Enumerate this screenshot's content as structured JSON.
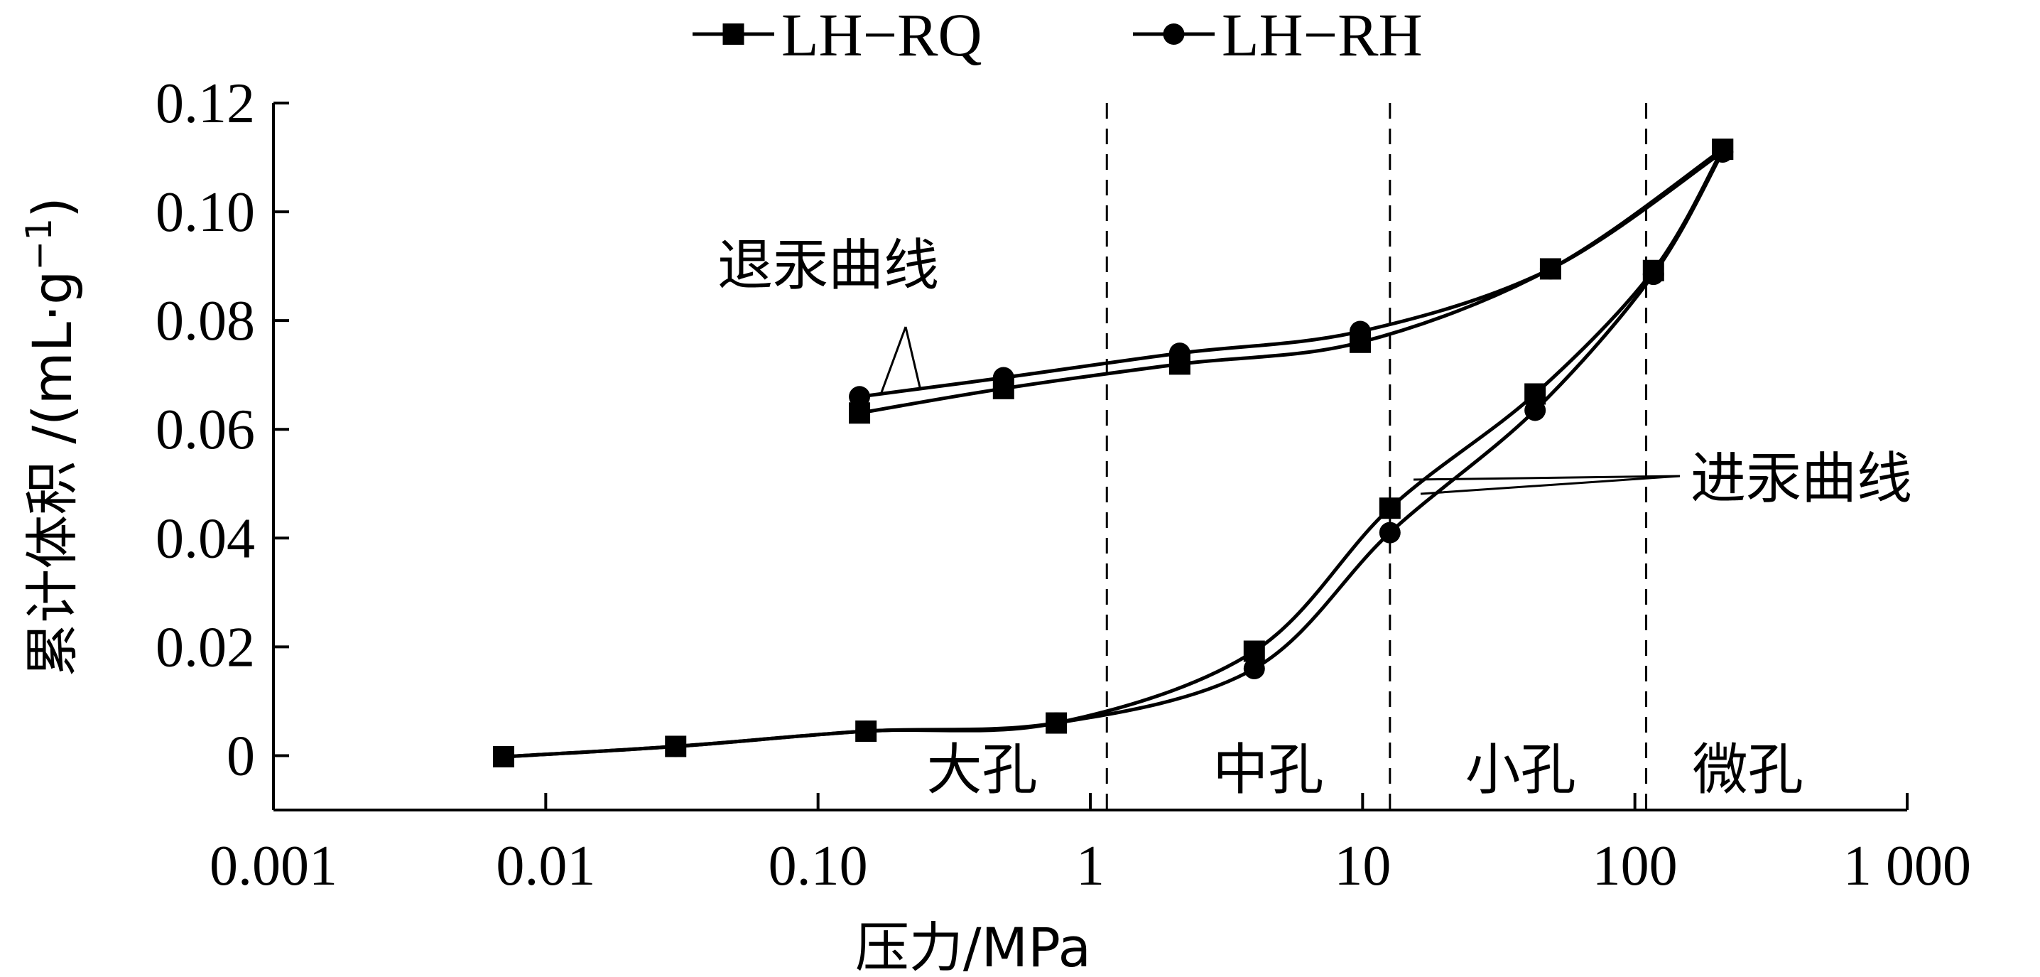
{
  "chart_data": {
    "type": "line",
    "x_scale": "log",
    "xlabel": "压力/MPa",
    "ylabel_main": "累计体积 /(mL·g",
    "ylabel_sup": "−1",
    "ylabel_close": ")",
    "xlim": [
      0.001,
      1000
    ],
    "ylim": [
      -0.01,
      0.12
    ],
    "x_ticks": [
      {
        "value": 0.001,
        "label": "0.001"
      },
      {
        "value": 0.01,
        "label": "0.01"
      },
      {
        "value": 0.1,
        "label": "0.10"
      },
      {
        "value": 1,
        "label": "1"
      },
      {
        "value": 10,
        "label": "10"
      },
      {
        "value": 100,
        "label": "100"
      },
      {
        "value": 1000,
        "label": "1 000"
      }
    ],
    "y_ticks": [
      {
        "value": 0,
        "label": "0"
      },
      {
        "value": 0.02,
        "label": "0.02"
      },
      {
        "value": 0.04,
        "label": "0.04"
      },
      {
        "value": 0.06,
        "label": "0.06"
      },
      {
        "value": 0.08,
        "label": "0.08"
      },
      {
        "value": 0.1,
        "label": "0.10"
      },
      {
        "value": 0.12,
        "label": "0.12"
      }
    ],
    "grid": false,
    "legend_position": "top-center",
    "series": [
      {
        "name": "LH−RQ",
        "marker": "square",
        "intrusion": [
          [
            0.007,
            -0.0002
          ],
          [
            0.03,
            0.0017
          ],
          [
            0.15,
            0.0045
          ],
          [
            0.75,
            0.006
          ],
          [
            4,
            0.0192
          ],
          [
            12.6,
            0.0455
          ],
          [
            43,
            0.0665
          ],
          [
            117,
            0.0892
          ],
          [
            210,
            0.1115
          ]
        ],
        "extrusion": [
          [
            0.142,
            0.063
          ],
          [
            0.48,
            0.0675
          ],
          [
            2.13,
            0.072
          ],
          [
            9.8,
            0.076
          ],
          [
            49,
            0.0895
          ],
          [
            210,
            0.1115
          ]
        ]
      },
      {
        "name": "LH−RH",
        "marker": "circle",
        "intrusion": [
          [
            0.007,
            -0.0002
          ],
          [
            0.03,
            0.0017
          ],
          [
            0.15,
            0.0045
          ],
          [
            0.75,
            0.006
          ],
          [
            4,
            0.016
          ],
          [
            12.6,
            0.041
          ],
          [
            43,
            0.0635
          ],
          [
            117,
            0.0885
          ],
          [
            210,
            0.111
          ]
        ],
        "extrusion": [
          [
            0.142,
            0.066
          ],
          [
            0.48,
            0.0695
          ],
          [
            2.13,
            0.074
          ],
          [
            9.8,
            0.078
          ],
          [
            49,
            0.0895
          ],
          [
            210,
            0.111
          ]
        ]
      }
    ],
    "dividers": [
      1.15,
      12.6,
      110
    ],
    "regions": [
      {
        "label": "大孔",
        "x": 0.4
      },
      {
        "label": "中孔",
        "x": 4.5
      },
      {
        "label": "小孔",
        "x": 38
      },
      {
        "label": "微孔",
        "x": 260
      }
    ],
    "annotations": {
      "extrusion_label": "退汞曲线",
      "intrusion_label": "进汞曲线"
    }
  }
}
